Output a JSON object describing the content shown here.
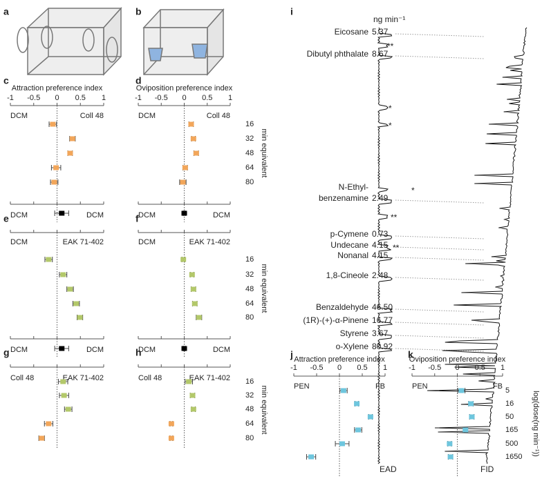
{
  "illustrations": [
    {
      "label": "a"
    },
    {
      "label": "b"
    }
  ],
  "chart_data": [
    {
      "type": "forest",
      "label": "c",
      "title": "Attraction preference index",
      "xlim": [
        -1,
        1
      ],
      "xticks": [
        -1,
        -0.5,
        0,
        0.5,
        1
      ],
      "tick_labels": true,
      "left_label": "DCM",
      "right_label": "Coll 48",
      "values": [
        -0.09,
        0.33,
        0.28,
        -0.02,
        -0.06
      ],
      "errors": [
        0.08,
        0.06,
        0.05,
        0.1,
        0.08
      ],
      "colors": [
        "#f2a65a",
        "#f2a65a",
        "#f2a65a",
        "#f2a65a",
        "#f2a65a"
      ],
      "control": {
        "left_label": "DCM",
        "right_label": "DCM",
        "value": 0.1,
        "error": 0.15,
        "color": "#000000"
      }
    },
    {
      "type": "forest",
      "label": "d",
      "title": "Oviposition preference index",
      "xlim": [
        -1,
        1
      ],
      "xticks": [
        -1,
        -0.5,
        0,
        0.5,
        1
      ],
      "tick_labels": true,
      "left_label": "DCM",
      "right_label": "Coll 48",
      "categories": [
        "16",
        "32",
        "48",
        "64",
        "80"
      ],
      "category_axis_label": "min equivalent",
      "values": [
        0.15,
        0.2,
        0.26,
        0.02,
        -0.03
      ],
      "errors": [
        0.05,
        0.04,
        0.05,
        0.05,
        0.07
      ],
      "colors": [
        "#f2a65a",
        "#f2a65a",
        "#f2a65a",
        "#f2a65a",
        "#f2a65a"
      ],
      "control": {
        "left_label": "DCM",
        "right_label": "DCM",
        "value": 0,
        "error": 0.02,
        "color": "#000000"
      }
    },
    {
      "type": "forest",
      "label": "e",
      "xlim": [
        -1,
        1
      ],
      "xticks": [
        -1,
        -0.5,
        0,
        0.5,
        1
      ],
      "tick_labels": false,
      "left_label": "DCM",
      "right_label": "EAK 71-402",
      "values": [
        -0.18,
        0.13,
        0.28,
        0.41,
        0.49
      ],
      "errors": [
        0.08,
        0.08,
        0.07,
        0.07,
        0.06
      ],
      "colors": [
        "#b3c86a",
        "#b3c86a",
        "#b3c86a",
        "#b3c86a",
        "#b3c86a"
      ],
      "control": {
        "left_label": "DCM",
        "right_label": "DCM",
        "value": 0.1,
        "error": 0.15,
        "color": "#000000"
      }
    },
    {
      "type": "forest",
      "label": "f",
      "xlim": [
        -1,
        1
      ],
      "xticks": [
        -1,
        -0.5,
        0,
        0.5,
        1
      ],
      "tick_labels": false,
      "left_label": "DCM",
      "right_label": "EAK 71-402",
      "categories": [
        "16",
        "32",
        "48",
        "64",
        "80"
      ],
      "category_axis_label": "min equivalent",
      "values": [
        -0.02,
        0.17,
        0.2,
        0.23,
        0.32
      ],
      "errors": [
        0.03,
        0.04,
        0.05,
        0.05,
        0.06
      ],
      "colors": [
        "#b3c86a",
        "#b3c86a",
        "#b3c86a",
        "#b3c86a",
        "#b3c86a"
      ],
      "control": {
        "left_label": "DCM",
        "right_label": "DCM",
        "value": 0,
        "error": 0.02,
        "color": "#000000"
      }
    },
    {
      "type": "forest",
      "label": "g",
      "xlim": [
        -1,
        1
      ],
      "xticks": [
        -1,
        -0.5,
        0,
        0.5,
        1
      ],
      "tick_labels": false,
      "left_label": "Coll 48",
      "right_label": "EAK 71-402",
      "values": [
        0.13,
        0.15,
        0.24,
        -0.18,
        -0.33
      ],
      "errors": [
        0.1,
        0.1,
        0.08,
        0.09,
        0.06
      ],
      "colors": [
        "#b3c86a",
        "#b3c86a",
        "#b3c86a",
        "#f2a65a",
        "#f2a65a"
      ]
    },
    {
      "type": "forest",
      "label": "h",
      "xlim": [
        -1,
        1
      ],
      "xticks": [
        -1,
        -0.5,
        0,
        0.5,
        1
      ],
      "tick_labels": false,
      "left_label": "Coll 48",
      "right_label": "EAK 71-402",
      "categories": [
        "16",
        "32",
        "48",
        "64",
        "80"
      ],
      "category_axis_label": "min equivalent",
      "values": [
        0.1,
        0.18,
        0.2,
        -0.28,
        -0.28
      ],
      "errors": [
        0.08,
        0.05,
        0.04,
        0.03,
        0.03
      ],
      "colors": [
        "#b3c86a",
        "#b3c86a",
        "#b3c86a",
        "#f2a65a",
        "#f2a65a"
      ]
    },
    {
      "type": "forest",
      "label": "j",
      "title": "Attraction preference index",
      "xlim": [
        -1,
        1
      ],
      "xticks": [
        -1,
        -0.5,
        0,
        0.5,
        1
      ],
      "tick_labels": true,
      "left_label": "PEN",
      "right_label": "FB",
      "values": [
        0.09,
        0.38,
        0.68,
        0.41,
        0.06,
        -0.62
      ],
      "errors": [
        0.08,
        0.04,
        0.04,
        0.08,
        0.15,
        0.1
      ],
      "colors": [
        "#6ec6de",
        "#6ec6de",
        "#6ec6de",
        "#6ec6de",
        "#6ec6de",
        "#6ec6de"
      ]
    },
    {
      "type": "forest",
      "label": "k",
      "title": "Oviposition preference index",
      "xlim": [
        -1,
        1
      ],
      "xticks": [
        -1,
        -0.5,
        0,
        0.5,
        1
      ],
      "tick_labels": true,
      "left_label": "PEN",
      "right_label": "FB",
      "categories": [
        "5",
        "16",
        "50",
        "165",
        "500",
        "1650"
      ],
      "category_axis_label": "log(dose(ng min⁻¹))",
      "values": [
        0.09,
        0.3,
        0.32,
        0.18,
        -0.17,
        -0.15
      ],
      "errors": [
        0.08,
        0.05,
        0.05,
        0.04,
        0.04,
        0.05
      ],
      "colors": [
        "#6ec6de",
        "#6ec6de",
        "#6ec6de",
        "#6ec6de",
        "#6ec6de",
        "#6ec6de"
      ]
    }
  ],
  "panel_i": {
    "label": "i",
    "unit": "ng min⁻¹",
    "ead_label": "EAD",
    "fid_label": "FID",
    "compounds": [
      {
        "name": [
          "Eicosane"
        ],
        "amount": "5.37"
      },
      {
        "name": [
          "Dibutyl phthalate"
        ],
        "amount": "8.67"
      },
      {
        "name": [
          "N-Ethyl-",
          "benzenamine"
        ],
        "amount": "2.49"
      },
      {
        "name": [
          "p-Cymene"
        ],
        "amount": "0.73"
      },
      {
        "name": [
          "Undecane"
        ],
        "amount": "4.15"
      },
      {
        "name": [
          "Nonanal"
        ],
        "amount": "4.15"
      },
      {
        "name": [
          "1,8-Cineole"
        ],
        "amount": "2.48"
      },
      {
        "name": [
          "Benzaldehyde"
        ],
        "amount": "46.50"
      },
      {
        "name": [
          "(1R)-(+)-α-Pinene"
        ],
        "amount": "16.77"
      },
      {
        "name": [
          "Styrene"
        ],
        "amount": "3.67"
      },
      {
        "name": [
          "o-Xylene"
        ],
        "amount": "80.92"
      }
    ],
    "annotations": [
      "**",
      "*",
      "*",
      "*",
      "**",
      "**"
    ]
  }
}
